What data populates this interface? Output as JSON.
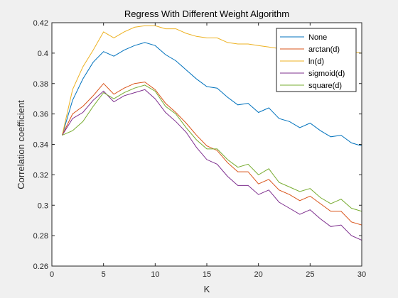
{
  "chart_data": {
    "type": "line",
    "title": "Regress With Different Weight Algorithm",
    "xlabel": "K",
    "ylabel": "Correlation coefficient",
    "xlim": [
      0,
      30
    ],
    "ylim": [
      0.26,
      0.42
    ],
    "xticks": [
      0,
      5,
      10,
      15,
      20,
      25,
      30
    ],
    "yticks": [
      0.26,
      0.28,
      0.3,
      0.32,
      0.34,
      0.36,
      0.38,
      0.4,
      0.42
    ],
    "ytick_labels": [
      "0.26",
      "0.28",
      "0.3",
      "0.32",
      "0.34",
      "0.36",
      "0.38",
      "0.4",
      "0.42"
    ],
    "grid": false,
    "legend_position": "top-right",
    "x": [
      1,
      2,
      3,
      4,
      5,
      6,
      7,
      8,
      9,
      10,
      11,
      12,
      13,
      14,
      15,
      16,
      17,
      18,
      19,
      20,
      21,
      22,
      23,
      24,
      25,
      26,
      27,
      28,
      29,
      30
    ],
    "series": [
      {
        "name": "None",
        "color": "#0072bd",
        "values": [
          0.346,
          0.369,
          0.383,
          0.394,
          0.401,
          0.398,
          0.402,
          0.405,
          0.407,
          0.405,
          0.399,
          0.395,
          0.389,
          0.383,
          0.378,
          0.377,
          0.371,
          0.366,
          0.367,
          0.361,
          0.364,
          0.357,
          0.355,
          0.351,
          0.354,
          0.349,
          0.345,
          0.346,
          0.341,
          0.339
        ]
      },
      {
        "name": "arctan(d)",
        "color": "#d95319",
        "values": [
          0.346,
          0.36,
          0.365,
          0.372,
          0.38,
          0.373,
          0.377,
          0.38,
          0.381,
          0.376,
          0.367,
          0.361,
          0.354,
          0.346,
          0.339,
          0.336,
          0.328,
          0.322,
          0.322,
          0.314,
          0.317,
          0.31,
          0.307,
          0.303,
          0.306,
          0.301,
          0.296,
          0.296,
          0.289,
          0.287
        ]
      },
      {
        "name": "ln(d)",
        "color": "#edb120",
        "values": [
          0.346,
          0.376,
          0.391,
          0.402,
          0.414,
          0.41,
          0.414,
          0.417,
          0.418,
          0.418,
          0.416,
          0.416,
          0.413,
          0.411,
          0.41,
          0.41,
          0.407,
          0.406,
          0.406,
          0.405,
          0.404,
          0.403,
          0.402,
          0.403,
          0.402,
          0.402,
          0.402,
          0.401,
          0.401,
          0.4
        ]
      },
      {
        "name": "sigmoid(d)",
        "color": "#7e2f8e",
        "values": [
          0.346,
          0.357,
          0.361,
          0.369,
          0.375,
          0.368,
          0.372,
          0.374,
          0.376,
          0.37,
          0.361,
          0.355,
          0.348,
          0.338,
          0.33,
          0.327,
          0.319,
          0.313,
          0.313,
          0.307,
          0.31,
          0.302,
          0.298,
          0.294,
          0.297,
          0.291,
          0.286,
          0.287,
          0.28,
          0.277
        ]
      },
      {
        "name": "square(d)",
        "color": "#77ac30",
        "values": [
          0.346,
          0.349,
          0.355,
          0.365,
          0.374,
          0.37,
          0.374,
          0.377,
          0.379,
          0.375,
          0.365,
          0.36,
          0.351,
          0.343,
          0.337,
          0.337,
          0.33,
          0.325,
          0.327,
          0.32,
          0.324,
          0.315,
          0.312,
          0.309,
          0.311,
          0.305,
          0.301,
          0.304,
          0.298,
          0.296
        ]
      }
    ]
  }
}
